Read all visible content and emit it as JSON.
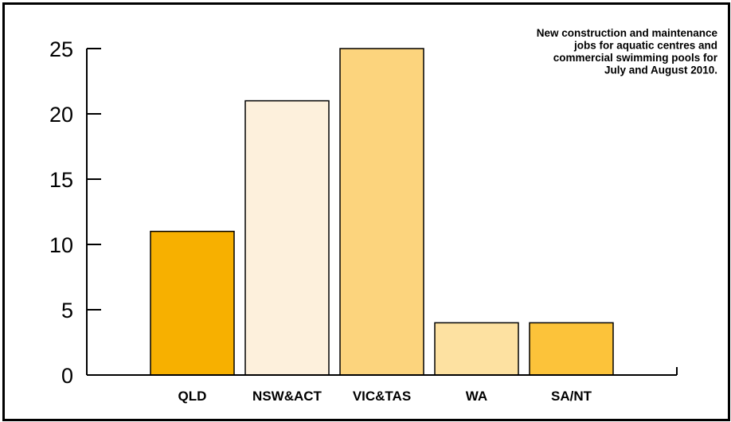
{
  "chart_data": {
    "type": "bar",
    "categories": [
      "QLD",
      "NSW&ACT",
      "VIC&TAS",
      "WA",
      "SA/NT"
    ],
    "values": [
      11,
      21,
      25,
      4,
      4
    ],
    "bar_colors": [
      "#f7b000",
      "#fdf0dc",
      "#fcd47d",
      "#fde1a1",
      "#fcc33a"
    ],
    "ylim": [
      0,
      25
    ],
    "yticks": [
      0,
      5,
      10,
      15,
      20,
      25
    ],
    "annotation_lines": [
      "New construction and maintenance",
      "jobs for aquatic centres and",
      "commercial swimming pools for",
      "July and August 2010."
    ],
    "grid": false,
    "legend": "none"
  }
}
